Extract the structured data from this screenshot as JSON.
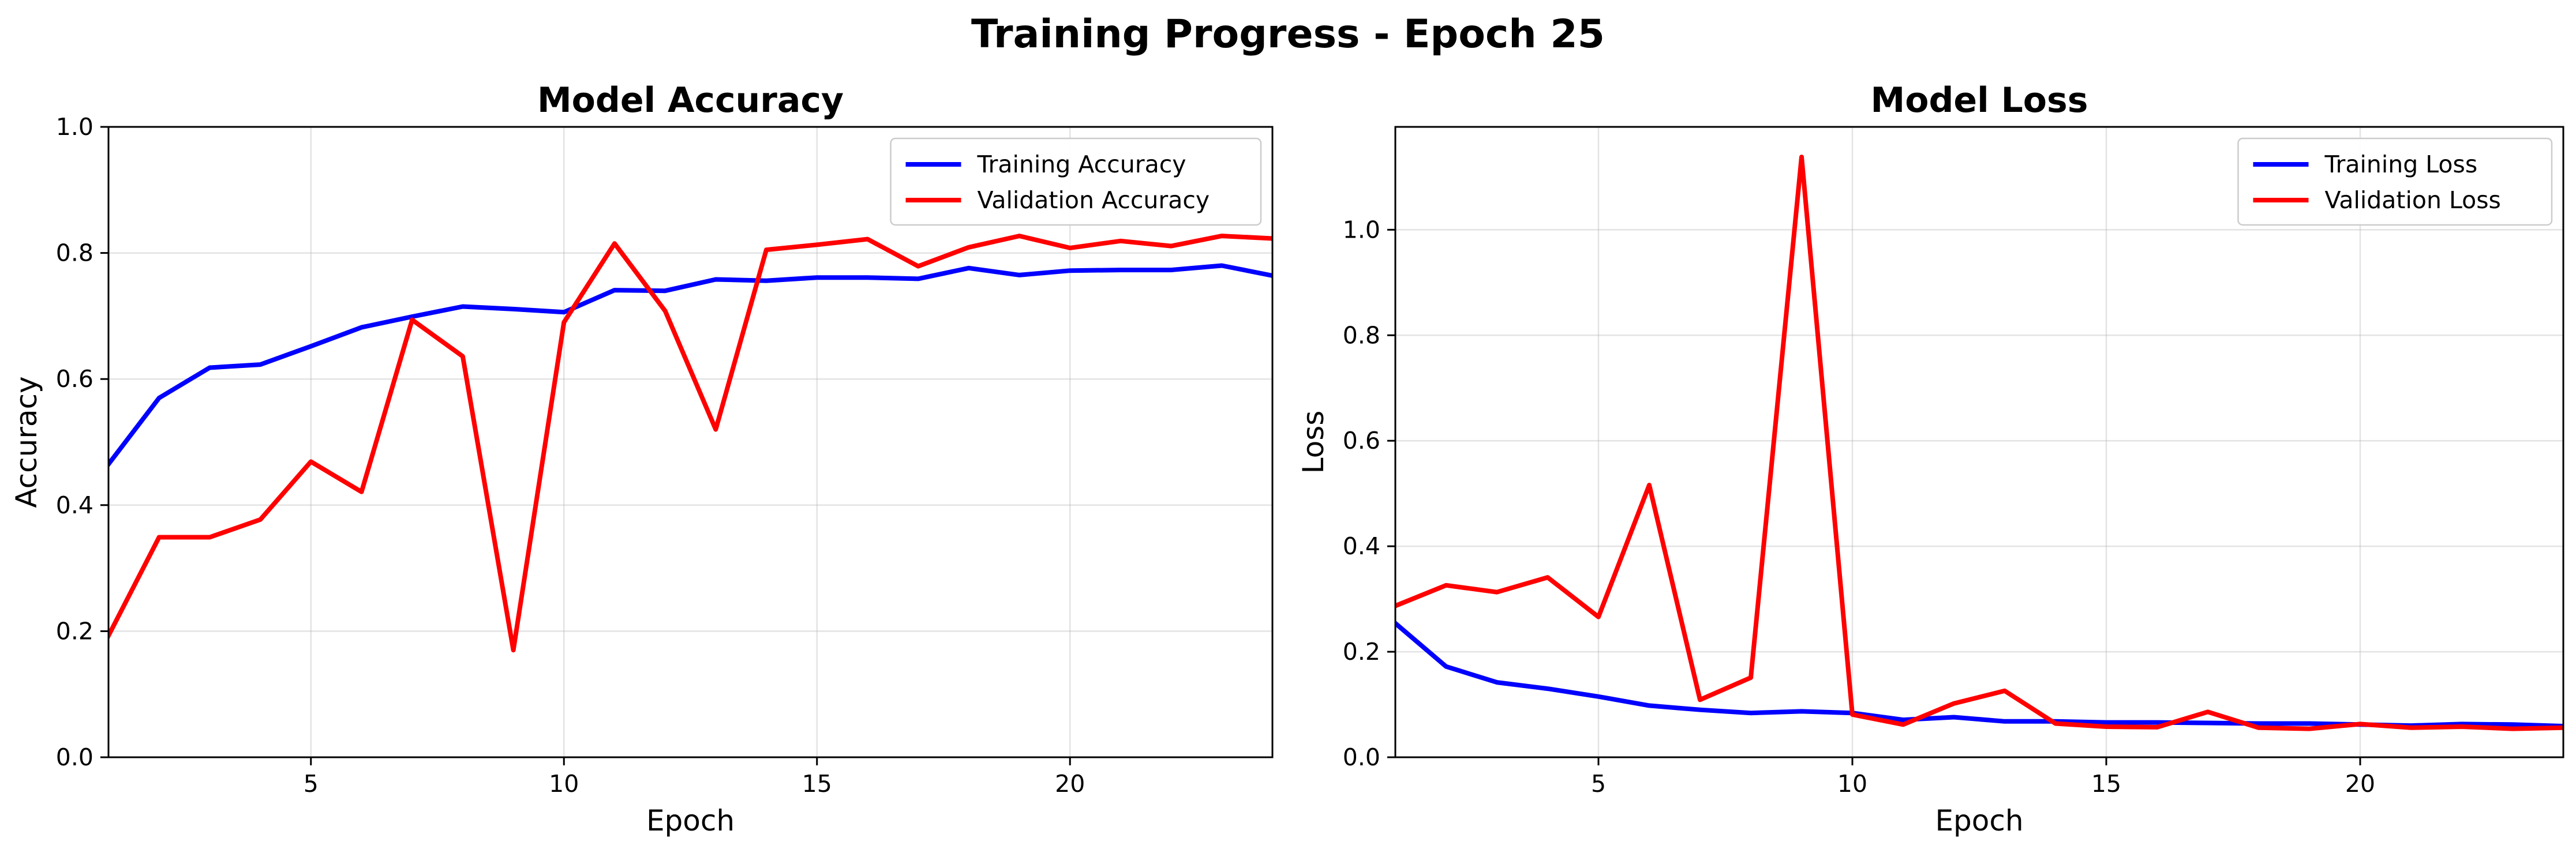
{
  "figure": {
    "title": "Training Progress - Epoch 25"
  },
  "chart_data": [
    {
      "type": "line",
      "title": "Model Accuracy",
      "xlabel": "Epoch",
      "ylabel": "Accuracy",
      "xlim": [
        1,
        24
      ],
      "ylim": [
        0,
        1.0
      ],
      "xticks": [
        5,
        10,
        15,
        20
      ],
      "yticks": [
        0.0,
        0.2,
        0.4,
        0.6,
        0.8,
        1.0
      ],
      "grid": true,
      "legend_position": "top-right",
      "x": [
        1,
        2,
        3,
        4,
        5,
        6,
        7,
        8,
        9,
        10,
        11,
        12,
        13,
        14,
        15,
        16,
        17,
        18,
        19,
        20,
        21,
        22,
        23,
        24
      ],
      "series": [
        {
          "name": "Training Accuracy",
          "color": "#0000ff",
          "values": [
            0.465,
            0.57,
            0.618,
            0.623,
            0.652,
            0.682,
            0.699,
            0.715,
            0.711,
            0.706,
            0.741,
            0.74,
            0.758,
            0.756,
            0.761,
            0.761,
            0.759,
            0.776,
            0.765,
            0.772,
            0.773,
            0.773,
            0.78,
            0.764
          ]
        },
        {
          "name": "Validation Accuracy",
          "color": "#ff0000",
          "values": [
            0.193,
            0.349,
            0.349,
            0.377,
            0.469,
            0.421,
            0.694,
            0.636,
            0.17,
            0.69,
            0.815,
            0.708,
            0.52,
            0.805,
            0.813,
            0.822,
            0.779,
            0.809,
            0.827,
            0.808,
            0.819,
            0.811,
            0.827,
            0.823
          ]
        }
      ]
    },
    {
      "type": "line",
      "title": "Model Loss",
      "xlabel": "Epoch",
      "ylabel": "Loss",
      "xlim": [
        1,
        24
      ],
      "ylim": [
        0,
        1.195
      ],
      "xticks": [
        5,
        10,
        15,
        20
      ],
      "yticks": [
        0.0,
        0.2,
        0.4,
        0.6,
        0.8,
        1.0
      ],
      "grid": true,
      "legend_position": "top-right",
      "x": [
        1,
        2,
        3,
        4,
        5,
        6,
        7,
        8,
        9,
        10,
        11,
        12,
        13,
        14,
        15,
        16,
        17,
        18,
        19,
        20,
        21,
        22,
        23,
        24
      ],
      "series": [
        {
          "name": "Training Loss",
          "color": "#0000ff",
          "values": [
            0.254,
            0.172,
            0.142,
            0.13,
            0.115,
            0.098,
            0.09,
            0.084,
            0.087,
            0.084,
            0.071,
            0.076,
            0.068,
            0.068,
            0.066,
            0.066,
            0.065,
            0.064,
            0.064,
            0.062,
            0.06,
            0.063,
            0.062,
            0.059
          ]
        },
        {
          "name": "Validation Loss",
          "color": "#ff0000",
          "values": [
            0.287,
            0.326,
            0.313,
            0.341,
            0.266,
            0.516,
            0.109,
            0.151,
            1.138,
            0.081,
            0.062,
            0.102,
            0.126,
            0.064,
            0.058,
            0.057,
            0.086,
            0.056,
            0.054,
            0.063,
            0.056,
            0.058,
            0.054,
            0.056
          ]
        }
      ]
    }
  ]
}
